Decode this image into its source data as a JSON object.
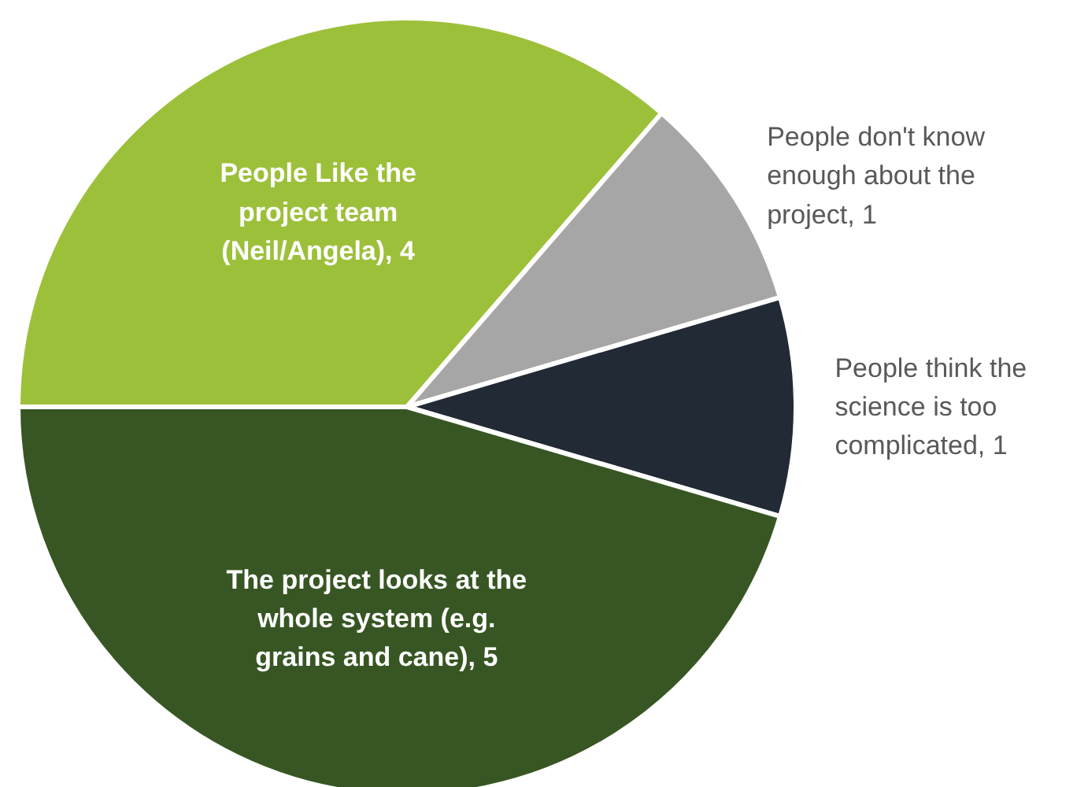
{
  "chart_data": {
    "type": "pie",
    "categories": [
      "People Like the project team (Neil/Angela)",
      "People don't know enough about the project",
      "People think the science is too complicated",
      "The project looks at the whole system (e.g. grains and cane)"
    ],
    "values": [
      4,
      1,
      1,
      5
    ],
    "colors": [
      "#9dc03b",
      "#a6a6a6",
      "#222a35",
      "#375623"
    ],
    "value_labels": [
      "4",
      "1",
      "1",
      "5"
    ]
  }
}
